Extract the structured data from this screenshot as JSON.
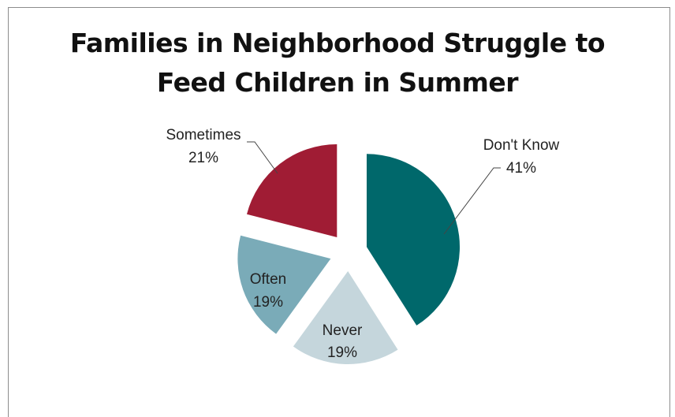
{
  "chart_data": {
    "type": "pie",
    "title_line1": "Families in Neighborhood Struggle to",
    "title_line2": "Feed Children in Summer",
    "slices": [
      {
        "label": "Don't Know",
        "value": 41,
        "pct_text": "41%",
        "color": "#00686b"
      },
      {
        "label": "Never",
        "value": 19,
        "pct_text": "19%",
        "color": "#c5d6dc"
      },
      {
        "label": "Often",
        "value": 19,
        "pct_text": "19%",
        "color": "#7aabb8"
      },
      {
        "label": "Sometimes",
        "value": 21,
        "pct_text": "21%",
        "color": "#a01c34"
      }
    ],
    "exploded": true,
    "legend": "none"
  }
}
